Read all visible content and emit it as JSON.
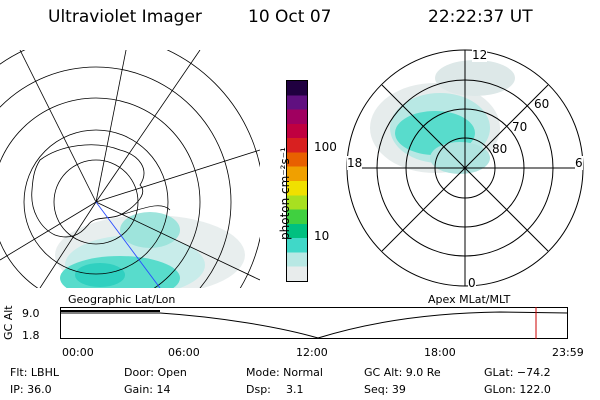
{
  "header": {
    "instrument": "Ultraviolet Imager",
    "date": "10 Oct 07",
    "time": "22:22:37 UT"
  },
  "colorbar": {
    "unit_label": "photon cm⁻²s⁻¹",
    "ticks": [
      "100",
      "10"
    ],
    "colors": [
      "#e8ecec",
      "#b8e8e4",
      "#40d8c8",
      "#00c080",
      "#40d040",
      "#a8e020",
      "#f0e000",
      "#f0a000",
      "#e86000",
      "#d82020",
      "#c00040",
      "#a00060",
      "#601080",
      "#200040"
    ]
  },
  "left_map": {
    "label": "Geographic Lat/Lon"
  },
  "right_map": {
    "label": "Apex MLat/MLT",
    "mlt_labels": {
      "top": "12",
      "left": "18",
      "right": "6",
      "bottom": "0"
    },
    "mlat_labels": [
      "60",
      "70",
      "80"
    ]
  },
  "altitude_plot": {
    "axis_label": "GC Alt",
    "y_ticks": [
      "9.0",
      "1.8"
    ],
    "x_ticks": [
      "00:00",
      "06:00",
      "12:00",
      "18:00",
      "23:59"
    ],
    "current_time_marker_color": "#cc0000"
  },
  "footer": {
    "flt": "Flt: LBHL",
    "ip": "IP: 36.0",
    "door": "Door: Open",
    "gain": "Gain: 14",
    "mode": "Mode: Normal",
    "dsp_label": "Dsp:",
    "dsp_value": "3.1",
    "gc_alt": "GC Alt: 9.0 Re",
    "seq": "Seq: 39",
    "glat": "GLat: −74.2",
    "glon": "GLon: 122.0"
  }
}
